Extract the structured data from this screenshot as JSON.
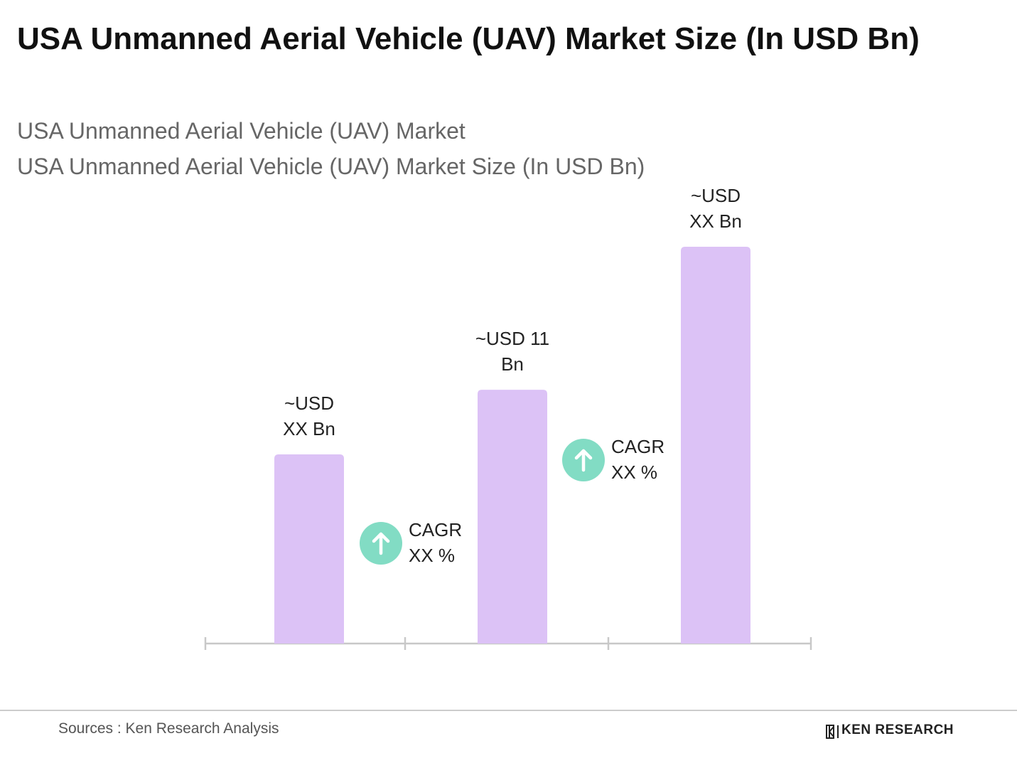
{
  "chart_data": {
    "type": "bar",
    "title": "USA Unmanned Aerial Vehicle (UAV) Market Size (In USD Bn)",
    "subtitle": [
      "USA Unmanned Aerial Vehicle (UAV) Market",
      "USA Unmanned Aerial Vehicle (UAV) Market Size (In USD Bn)"
    ],
    "values": [
      8.2,
      11,
      17.2
    ],
    "value_labels": [
      "~USD XX Bn",
      "~USD 11 Bn",
      "~USD XX Bn"
    ],
    "color": "#dcc2f6",
    "annotations": [
      "CAGR XX %",
      "CAGR XX %"
    ],
    "source": "Sources : Ken Research Analysis",
    "logo": "KEN RESEARCH"
  }
}
